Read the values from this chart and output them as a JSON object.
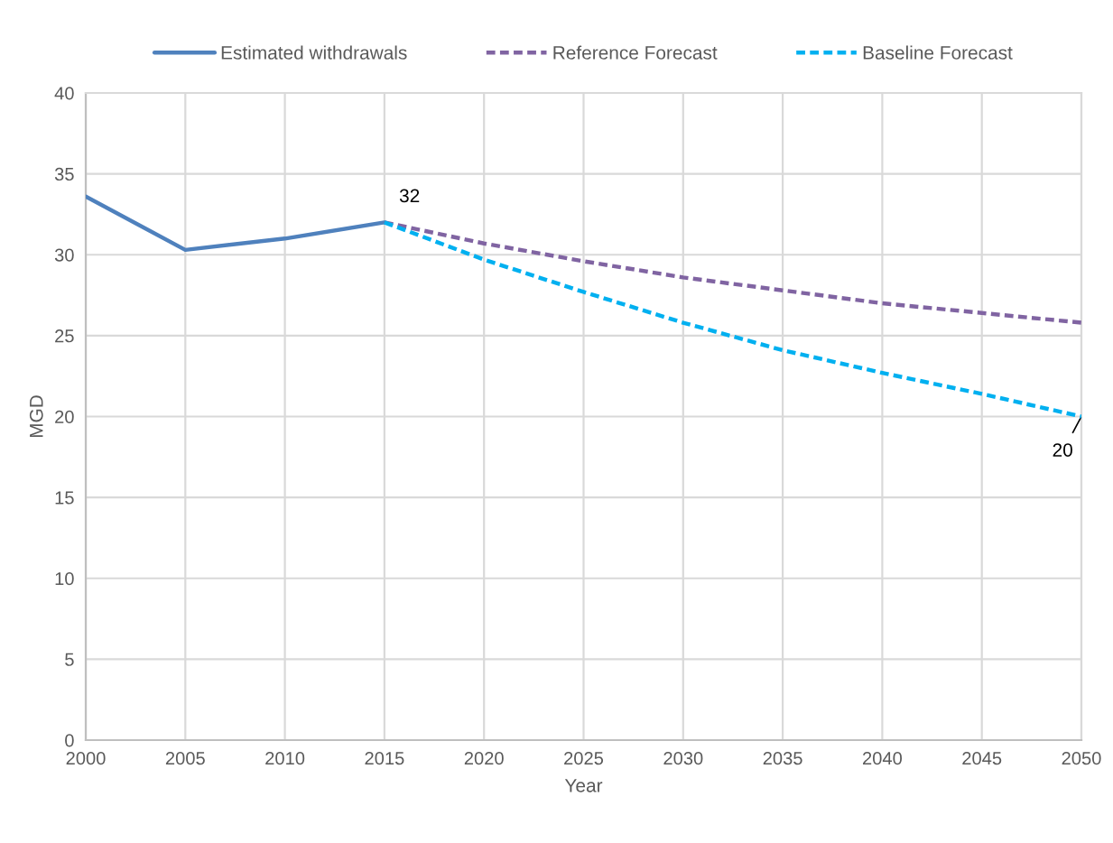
{
  "chart_data": {
    "type": "line",
    "xlabel": "Year",
    "ylabel": "MGD",
    "xlim": [
      2000,
      2050
    ],
    "ylim": [
      0,
      40
    ],
    "xticks": [
      2000,
      2005,
      2010,
      2015,
      2020,
      2025,
      2030,
      2035,
      2040,
      2045,
      2050
    ],
    "yticks": [
      0,
      5,
      10,
      15,
      20,
      25,
      30,
      35,
      40
    ],
    "grid": true,
    "legend": "top",
    "series": [
      {
        "name": "Estimated withdrawals",
        "color": "#4f81bd",
        "line_style": "solid",
        "x": [
          2000,
          2005,
          2010,
          2015
        ],
        "values": [
          33.6,
          30.3,
          31.0,
          32
        ],
        "value_labels": [
          null,
          null,
          null,
          "32"
        ]
      },
      {
        "name": "Reference Forecast",
        "color": "#8064a2",
        "line_style": "dashed",
        "x": [
          2015,
          2020,
          2025,
          2030,
          2035,
          2040,
          2045,
          2050
        ],
        "values": [
          32,
          30.7,
          29.6,
          28.6,
          27.8,
          27.0,
          26.4,
          25.8
        ]
      },
      {
        "name": "Baseline Forecast",
        "color": "#00b0f0",
        "line_style": "dashed",
        "x": [
          2015,
          2020,
          2025,
          2030,
          2035,
          2040,
          2045,
          2050
        ],
        "values": [
          32,
          29.7,
          27.7,
          25.8,
          24.1,
          22.7,
          21.4,
          20
        ],
        "value_labels": [
          null,
          null,
          null,
          null,
          null,
          null,
          null,
          "20"
        ]
      }
    ]
  }
}
